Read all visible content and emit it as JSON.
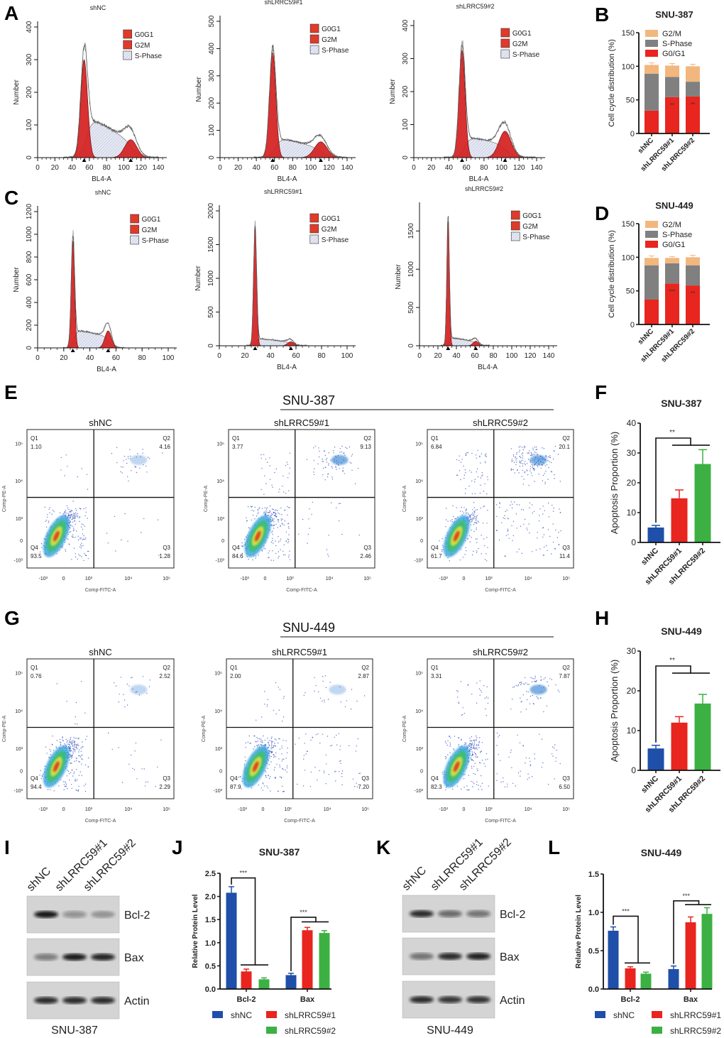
{
  "panel_labels": [
    "A",
    "B",
    "C",
    "D",
    "E",
    "F",
    "G",
    "H",
    "I",
    "J",
    "K",
    "L"
  ],
  "section_titles": {
    "E": "SNU-387",
    "G": "SNU-449"
  },
  "chart_data": [
    {
      "type": "histogram",
      "panel": "A",
      "title": "shNC",
      "xlabel": "BL4-A",
      "ylabel": "Number",
      "xlim": [
        0,
        140
      ],
      "ylim": [
        0,
        400
      ],
      "xticks": [
        0,
        20,
        40,
        60,
        80,
        100,
        120,
        140
      ],
      "yticks": [
        0,
        100,
        200,
        300,
        400
      ],
      "legend": [
        "G0G1",
        "G2M",
        "S-Phase"
      ],
      "g1": {
        "mean": 54,
        "sd": 4,
        "height": 300
      },
      "g2": {
        "mean": 108,
        "sd": 7,
        "height": 55
      },
      "s_phase": {
        "start": 57,
        "end": 112,
        "height": 130,
        "end_height": 45
      }
    },
    {
      "type": "histogram",
      "panel": "A",
      "title": "shLRRC59#1",
      "xlabel": "BL4-A",
      "ylabel": "Number",
      "xlim": [
        0,
        140
      ],
      "ylim": [
        0,
        500
      ],
      "xticks": [
        0,
        20,
        40,
        60,
        80,
        100,
        120,
        140
      ],
      "yticks": [
        0,
        100,
        200,
        300,
        400,
        500
      ],
      "legend": [
        "G0G1",
        "G2M",
        "S-Phase"
      ],
      "g1": {
        "mean": 58,
        "sd": 3.5,
        "height": 385
      },
      "g2": {
        "mean": 111,
        "sd": 7,
        "height": 58
      },
      "s_phase": {
        "start": 61,
        "end": 113,
        "height": 75,
        "end_height": 35
      }
    },
    {
      "type": "histogram",
      "panel": "A",
      "title": "shLRRC59#2",
      "xlabel": "BL4-A",
      "ylabel": "Number",
      "xlim": [
        0,
        140
      ],
      "ylim": [
        0,
        400
      ],
      "xticks": [
        0,
        20,
        40,
        60,
        80,
        100,
        120,
        140
      ],
      "yticks": [
        0,
        100,
        200,
        300,
        400
      ],
      "legend": [
        "G0G1",
        "G2M",
        "S-Phase"
      ],
      "g1": {
        "mean": 55,
        "sd": 3.5,
        "height": 325
      },
      "g2": {
        "mean": 104,
        "sd": 7,
        "height": 80
      },
      "s_phase": {
        "start": 58,
        "end": 106,
        "height": 65,
        "end_height": 40
      }
    },
    {
      "type": "histogram",
      "panel": "C",
      "title": "shNC",
      "xlabel": "BL4-A",
      "ylabel": "Number",
      "xlim": [
        0,
        100
      ],
      "ylim": [
        0,
        1200
      ],
      "xticks": [
        0,
        20,
        40,
        60,
        80,
        100
      ],
      "yticks": [
        0,
        200,
        400,
        600,
        800,
        1000,
        1200
      ],
      "legend": [
        "G0G1",
        "G2M",
        "S-Phase"
      ],
      "g1": {
        "mean": 27,
        "sd": 1.3,
        "height": 950
      },
      "g2": {
        "mean": 54,
        "sd": 2.5,
        "height": 150
      },
      "s_phase": {
        "start": 28,
        "end": 55,
        "height": 160,
        "end_height": 100
      }
    },
    {
      "type": "histogram",
      "panel": "C",
      "title": "shLRRC59#1",
      "xlabel": "BL4-A",
      "ylabel": "Number",
      "xlim": [
        0,
        100
      ],
      "ylim": [
        0,
        2000
      ],
      "xticks": [
        0,
        20,
        40,
        60,
        80,
        100
      ],
      "yticks": [
        0,
        500,
        1000,
        1500,
        2000
      ],
      "legend": [
        "G0G1",
        "G2M",
        "S-Phase"
      ],
      "g1": {
        "mean": 28,
        "sd": 1.2,
        "height": 1750
      },
      "g2": {
        "mean": 56,
        "sd": 2.5,
        "height": 60
      },
      "s_phase": {
        "start": 29,
        "end": 57,
        "height": 110,
        "end_height": 50
      }
    },
    {
      "type": "histogram",
      "panel": "C",
      "title": "shLRRC59#2",
      "xlabel": "BL4-A",
      "ylabel": "Number",
      "xlim": [
        0,
        140
      ],
      "ylim": [
        0,
        1800
      ],
      "xticks": [
        0,
        20,
        40,
        60,
        80,
        100,
        120,
        140
      ],
      "yticks": [
        0,
        500,
        1000,
        1500
      ],
      "legend": [
        "G0G1",
        "G2M",
        "S-Phase"
      ],
      "g1": {
        "mean": 31,
        "sd": 1.4,
        "height": 1650
      },
      "g2": {
        "mean": 61,
        "sd": 3,
        "height": 60
      },
      "s_phase": {
        "start": 32,
        "end": 62,
        "height": 110,
        "end_height": 50
      }
    },
    {
      "type": "bar",
      "stacked": true,
      "panel": "B",
      "title": "SNU-387",
      "ylabel": "Cell cycle distribution (%)",
      "ylim": [
        0,
        150
      ],
      "yticks": [
        0,
        50,
        100,
        150
      ],
      "categories": [
        "shNC",
        "shLRRC59#1",
        "shLRRC59#2"
      ],
      "series": [
        {
          "name": "G0/G1",
          "values": [
            34,
            54,
            55
          ],
          "errors": [
            3,
            3,
            3
          ]
        },
        {
          "name": "S-Phase",
          "values": [
            55,
            30,
            22
          ],
          "errors": [
            2,
            2,
            2
          ]
        },
        {
          "name": "G2/M",
          "values": [
            13,
            17,
            23
          ],
          "errors": [
            3,
            3,
            3
          ]
        }
      ],
      "legend": [
        "G2/M",
        "S-Phase",
        "G0/G1"
      ],
      "significance": [
        "",
        "**",
        "**"
      ],
      "colors": {
        "G0/G1": "#e8251f",
        "S-Phase": "#808080",
        "G2/M": "#f2b77e"
      }
    },
    {
      "type": "bar",
      "stacked": true,
      "panel": "D",
      "title": "SNU-449",
      "ylabel": "Cell cycle distribution (%)",
      "ylim": [
        0,
        150
      ],
      "yticks": [
        0,
        50,
        100,
        150
      ],
      "categories": [
        "shNC",
        "shLRRC59#1",
        "shLRRC59#2"
      ],
      "series": [
        {
          "name": "G0/G1",
          "values": [
            37,
            61,
            58
          ],
          "errors": [
            3,
            3,
            4
          ]
        },
        {
          "name": "S-Phase",
          "values": [
            51,
            30,
            30
          ],
          "errors": [
            2,
            2,
            2
          ]
        },
        {
          "name": "G2/M",
          "values": [
            11,
            8,
            12
          ],
          "errors": [
            3,
            2,
            3
          ]
        }
      ],
      "legend": [
        "G2/M",
        "S-Phase",
        "G0/G1"
      ],
      "significance": [
        "",
        "***",
        "**"
      ],
      "colors": {
        "G0/G1": "#e8251f",
        "S-Phase": "#808080",
        "G2/M": "#f2b77e"
      }
    },
    {
      "type": "scatter",
      "panel": "E",
      "cell_line": "SNU-387",
      "title": "shNC",
      "xlabel": "Comp-FITC-A",
      "ylabel": "Comp-PE-A",
      "xticks": [
        "-10³",
        "0",
        "10³",
        "10⁴",
        "10⁵"
      ],
      "yticks": [
        "10⁵",
        "10⁴",
        "10³",
        "0",
        "-10³"
      ],
      "quadrants": {
        "Q1": "1.10",
        "Q2": "4.16",
        "Q3": "1.28",
        "Q4": "93.5"
      }
    },
    {
      "type": "scatter",
      "panel": "E",
      "cell_line": "SNU-387",
      "title": "shLRRC59#1",
      "xlabel": "Comp-FITC-A",
      "ylabel": "Comp-PE-A",
      "xticks": [
        "-10³",
        "0",
        "10³",
        "10⁴",
        "10⁵"
      ],
      "yticks": [
        "10⁵",
        "10⁴",
        "10³",
        "0",
        "-10³"
      ],
      "quadrants": {
        "Q1": "3.77",
        "Q2": "9.13",
        "Q3": "2.46",
        "Q4": "84.6"
      }
    },
    {
      "type": "scatter",
      "panel": "E",
      "cell_line": "SNU-387",
      "title": "shLRRC59#2",
      "xlabel": "Comp-FITC-A",
      "ylabel": "Comp-PE-A",
      "xticks": [
        "-10³",
        "0",
        "10³",
        "10⁴",
        "10⁵"
      ],
      "yticks": [
        "10⁵",
        "10⁴",
        "10³",
        "0",
        "-10³"
      ],
      "quadrants": {
        "Q1": "6.84",
        "Q2": "20.1",
        "Q3": "11.4",
        "Q4": "61.7"
      }
    },
    {
      "type": "scatter",
      "panel": "G",
      "cell_line": "SNU-449",
      "title": "shNC",
      "xlabel": "Comp-FITC-A",
      "ylabel": "Comp-PE-A",
      "xticks": [
        "-10³",
        "0",
        "10³",
        "10⁴",
        "10⁵"
      ],
      "yticks": [
        "10⁵",
        "10⁴",
        "10³",
        "0",
        "-10³"
      ],
      "quadrants": {
        "Q1": "0.76",
        "Q2": "2.52",
        "Q3": "2.29",
        "Q4": "94.4"
      }
    },
    {
      "type": "scatter",
      "panel": "G",
      "cell_line": "SNU-449",
      "title": "shLRRC59#1",
      "xlabel": "Comp-FITC-A",
      "ylabel": "Comp-PE-A",
      "xticks": [
        "-10³",
        "0",
        "10³",
        "10⁴",
        "10⁵"
      ],
      "yticks": [
        "10⁵",
        "10⁴",
        "10³",
        "0",
        "-10³"
      ],
      "quadrants": {
        "Q1": "2.00",
        "Q2": "2.87",
        "Q3": "7.20",
        "Q4": "87.9"
      }
    },
    {
      "type": "scatter",
      "panel": "G",
      "cell_line": "SNU-449",
      "title": "shLRRC59#2",
      "xlabel": "Comp-FITC-A",
      "ylabel": "Comp-PE-A",
      "xticks": [
        "-10³",
        "0",
        "10³",
        "10⁴",
        "10⁵"
      ],
      "yticks": [
        "10⁵",
        "10⁴",
        "10³",
        "0",
        "-10³"
      ],
      "quadrants": {
        "Q1": "3.31",
        "Q2": "7.87",
        "Q3": "6.50",
        "Q4": "82.3"
      }
    },
    {
      "type": "bar",
      "panel": "F",
      "title": "SNU-387",
      "ylabel": "Apoptosis Proportion (%)",
      "ylim": [
        0,
        40
      ],
      "yticks": [
        0,
        10,
        20,
        30,
        40
      ],
      "categories": [
        "shNC",
        "shLRRC59#1",
        "shLRRC59#2"
      ],
      "values": [
        5.0,
        14.8,
        26.3
      ],
      "errors": [
        0.7,
        2.8,
        4.8
      ],
      "significance": "**",
      "colors": [
        "#1f4fa8",
        "#e8251f",
        "#3cb043"
      ]
    },
    {
      "type": "bar",
      "panel": "H",
      "title": "SNU-449",
      "ylabel": "Apoptosis Proportion (%)",
      "ylim": [
        0,
        30
      ],
      "yticks": [
        0,
        10,
        20,
        30
      ],
      "categories": [
        "shNC",
        "shLRRC59#1",
        "shLRRC59#2"
      ],
      "values": [
        5.5,
        12.0,
        16.8
      ],
      "errors": [
        0.8,
        1.5,
        2.3
      ],
      "significance": "**",
      "colors": [
        "#1f4fa8",
        "#e8251f",
        "#3cb043"
      ]
    },
    {
      "type": "blot",
      "panel": "I",
      "cell_line": "SNU-387",
      "lanes": [
        "shNC",
        "shLRRC59#1",
        "shLRRC59#2"
      ],
      "proteins": [
        "Bcl-2",
        "Bax",
        "Actin"
      ],
      "band_intensity": [
        [
          0.95,
          0.35,
          0.3
        ],
        [
          0.45,
          0.92,
          0.88
        ],
        [
          0.85,
          0.85,
          0.85
        ]
      ]
    },
    {
      "type": "bar",
      "grouped": true,
      "panel": "J",
      "title": "SNU-387",
      "ylabel": "Relative Protein Level",
      "ylim": [
        0,
        2.5
      ],
      "yticks": [
        "0.0",
        "0.5",
        "1.0",
        "1.5",
        "2.0",
        "2.5"
      ],
      "categories": [
        "Bcl-2",
        "Bax"
      ],
      "series": [
        {
          "name": "shNC",
          "values": [
            2.08,
            0.3
          ],
          "errors": [
            0.13,
            0.04
          ]
        },
        {
          "name": "shLRRC59#1",
          "values": [
            0.38,
            1.27
          ],
          "errors": [
            0.05,
            0.06
          ]
        },
        {
          "name": "shLRRC59#2",
          "values": [
            0.21,
            1.21
          ],
          "errors": [
            0.03,
            0.05
          ]
        }
      ],
      "significance": [
        "***",
        "***"
      ],
      "colors": [
        "#1f4fa8",
        "#e8251f",
        "#3cb043"
      ]
    },
    {
      "type": "blot",
      "panel": "K",
      "cell_line": "SNU-449",
      "lanes": [
        "shNC",
        "shLRRC59#1",
        "shLRRC59#2"
      ],
      "proteins": [
        "Bcl-2",
        "Bax",
        "Actin"
      ],
      "band_intensity": [
        [
          0.85,
          0.55,
          0.5
        ],
        [
          0.5,
          0.85,
          0.9
        ],
        [
          0.85,
          0.8,
          0.82
        ]
      ]
    },
    {
      "type": "bar",
      "grouped": true,
      "panel": "L",
      "title": "SNU-449",
      "ylabel": "Relative Protein Level",
      "ylim": [
        0,
        1.5
      ],
      "yticks": [
        "0.0",
        "0.5",
        "1.0",
        "1.5"
      ],
      "categories": [
        "Bcl-2",
        "Bax"
      ],
      "series": [
        {
          "name": "shNC",
          "values": [
            0.76,
            0.26
          ],
          "errors": [
            0.05,
            0.04
          ]
        },
        {
          "name": "shLRRC59#1",
          "values": [
            0.27,
            0.87
          ],
          "errors": [
            0.02,
            0.07
          ]
        },
        {
          "name": "shLRRC59#2",
          "values": [
            0.2,
            0.98
          ],
          "errors": [
            0.02,
            0.08
          ]
        }
      ],
      "significance": [
        "***",
        "***"
      ],
      "colors": [
        "#1f4fa8",
        "#e8251f",
        "#3cb043"
      ]
    }
  ]
}
